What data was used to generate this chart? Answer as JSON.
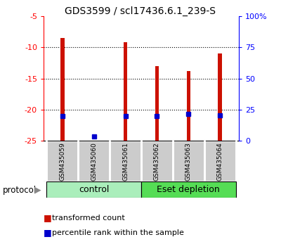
{
  "title": "GDS3599 / scl17436.6.1_239-S",
  "samples": [
    "GSM435059",
    "GSM435060",
    "GSM435061",
    "GSM435062",
    "GSM435063",
    "GSM435064"
  ],
  "transformed_counts": [
    -8.5,
    -25.2,
    -9.2,
    -13.0,
    -13.8,
    -11.0
  ],
  "percentile_ranks": [
    19.5,
    3.5,
    19.5,
    19.5,
    21.5,
    20.5
  ],
  "ylim_left": [
    -25,
    -5
  ],
  "ylim_right": [
    0,
    100
  ],
  "yticks_left": [
    -25,
    -20,
    -15,
    -10,
    -5
  ],
  "yticks_right": [
    0,
    25,
    50,
    75,
    100
  ],
  "yticklabels_right": [
    "0",
    "25",
    "50",
    "75",
    "100%"
  ],
  "bar_color": "#cc1100",
  "dot_color": "#0000cc",
  "group1_label": "control",
  "group1_color": "#aaeebb",
  "group1_color_dark": "#44cc66",
  "group2_label": "Eset depletion",
  "group2_color": "#55dd55",
  "group2_color_dark": "#22aa22",
  "protocol_label": "protocol",
  "legend_bar_label": "transformed count",
  "legend_dot_label": "percentile rank within the sample",
  "xlabel_area_color": "#cccccc",
  "bar_width": 0.12
}
